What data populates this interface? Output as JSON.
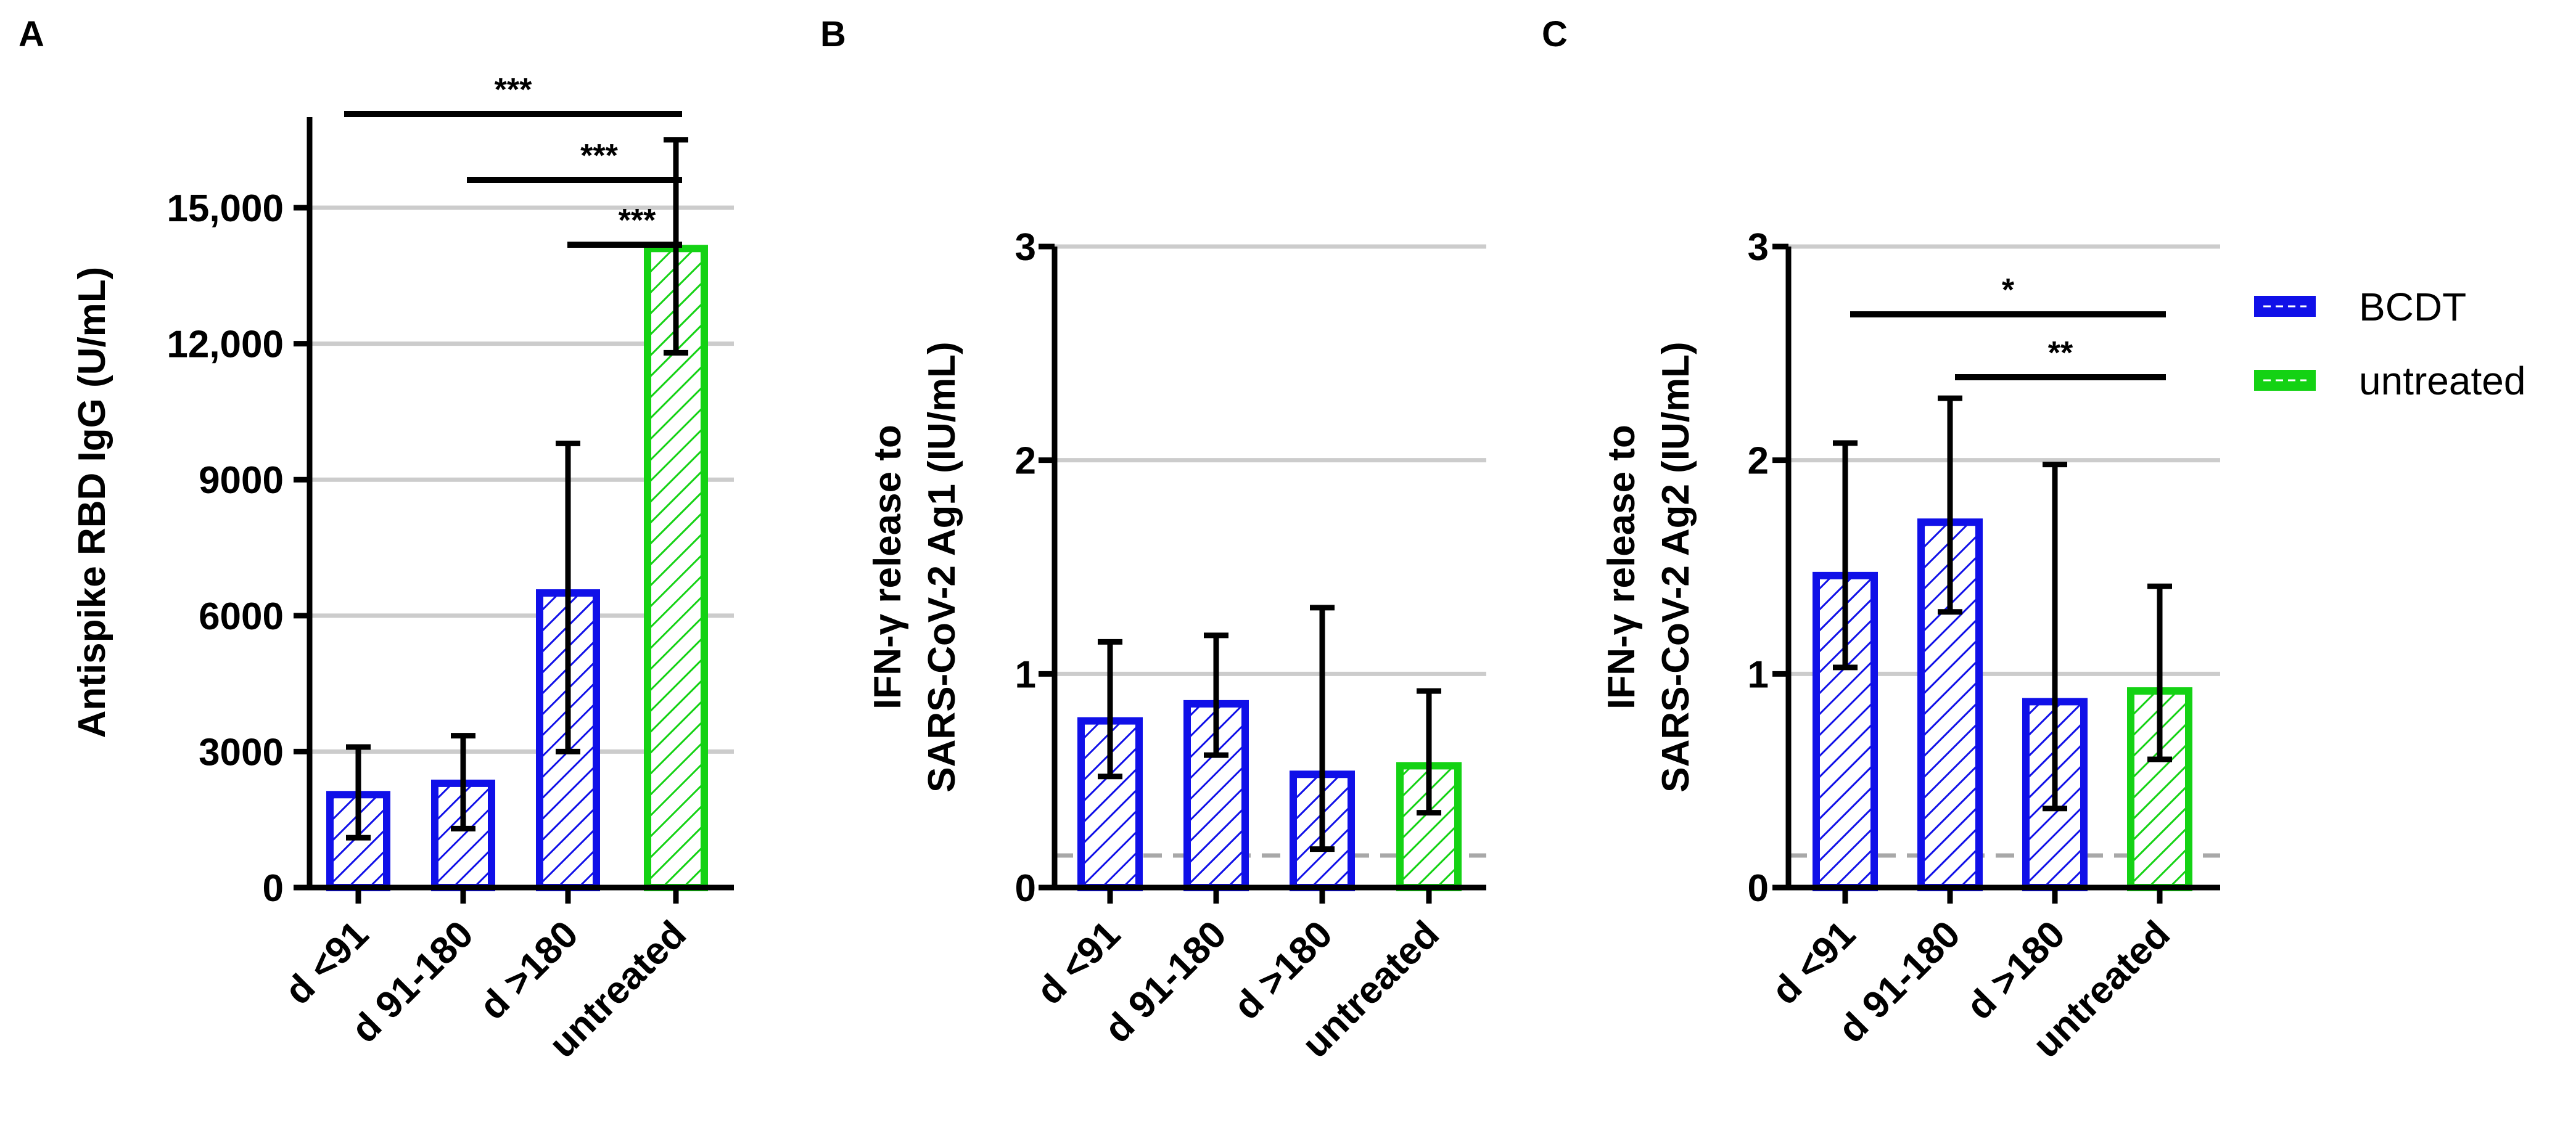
{
  "colors": {
    "bcdt": "#1010e8",
    "untreated": "#14d214",
    "axis": "#000000",
    "grid": "#cccccc",
    "baseline": "#a8a8a8"
  },
  "legend": {
    "entries": [
      {
        "label": "BCDT",
        "group": "bcdt"
      },
      {
        "label": "untreated",
        "group": "untreated"
      }
    ]
  },
  "chart_data": [
    {
      "panel": "A",
      "type": "bar",
      "ylabel": "Antispike RBD IgG (U/mL)",
      "ylim": [
        0,
        17000
      ],
      "yticks": [
        0,
        3000,
        6000,
        9000,
        12000,
        15000
      ],
      "ytick_labels": [
        "0",
        "3000",
        "6000",
        "9000",
        "12,000",
        "15,000"
      ],
      "grid": true,
      "categories": [
        "d <91",
        "d 91-180",
        "d >180",
        "untreated"
      ],
      "values": [
        2050,
        2300,
        6500,
        14100
      ],
      "err_low": [
        1100,
        1300,
        3000,
        11800
      ],
      "err_high": [
        3100,
        3350,
        9800,
        16500
      ],
      "groups": [
        "bcdt",
        "bcdt",
        "bcdt",
        "untreated"
      ],
      "baseline": null,
      "significance": [
        {
          "from": 0,
          "to": 3,
          "label": "***"
        },
        {
          "from": 1,
          "to": 3,
          "label": "***"
        },
        {
          "from": 2,
          "to": 3,
          "label": "***"
        }
      ]
    },
    {
      "panel": "B",
      "type": "bar",
      "ylabel": [
        "IFN-γ release to",
        "SARS-CoV-2 Ag1 (IU/mL)"
      ],
      "ylim": [
        0,
        3
      ],
      "yticks": [
        0,
        1,
        2,
        3
      ],
      "ytick_labels": [
        "0",
        "1",
        "2",
        "3"
      ],
      "grid": true,
      "categories": [
        "d <91",
        "d 91-180",
        "d >180",
        "untreated"
      ],
      "values": [
        0.78,
        0.86,
        0.53,
        0.57
      ],
      "err_low": [
        0.52,
        0.62,
        0.18,
        0.35
      ],
      "err_high": [
        1.15,
        1.18,
        1.31,
        0.92
      ],
      "groups": [
        "bcdt",
        "bcdt",
        "bcdt",
        "untreated"
      ],
      "baseline": 0.15,
      "significance": []
    },
    {
      "panel": "C",
      "type": "bar",
      "ylabel": [
        "IFN-γ release to",
        "SARS-CoV-2 Ag2 (IU/mL)"
      ],
      "ylim": [
        0,
        3
      ],
      "yticks": [
        0,
        1,
        2,
        3
      ],
      "ytick_labels": [
        "0",
        "1",
        "2",
        "3"
      ],
      "grid": true,
      "categories": [
        "d <91",
        "d 91-180",
        "d >180",
        "untreated"
      ],
      "values": [
        1.46,
        1.71,
        0.87,
        0.92
      ],
      "err_low": [
        1.03,
        1.29,
        0.37,
        0.6
      ],
      "err_high": [
        2.08,
        2.29,
        1.98,
        1.41
      ],
      "groups": [
        "bcdt",
        "bcdt",
        "bcdt",
        "untreated"
      ],
      "baseline": 0.15,
      "significance": [
        {
          "from": 0,
          "to": 3,
          "label": "*"
        },
        {
          "from": 1,
          "to": 3,
          "label": "**"
        }
      ]
    }
  ]
}
